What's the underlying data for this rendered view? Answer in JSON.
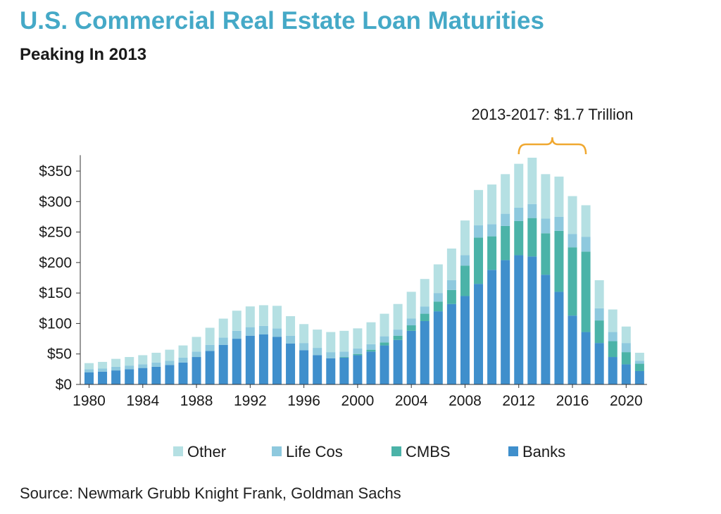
{
  "header": {
    "title": "U.S. Commercial Real Estate Loan Maturities",
    "subtitle": "Peaking In 2013"
  },
  "footer": {
    "source": "Source: Newmark Grubb Knight Frank, Goldman Sachs"
  },
  "chart_data": {
    "type": "bar",
    "stacked": true,
    "years": [
      1980,
      1981,
      1982,
      1983,
      1984,
      1985,
      1986,
      1987,
      1988,
      1989,
      1990,
      1991,
      1992,
      1993,
      1994,
      1995,
      1996,
      1997,
      1998,
      1999,
      2000,
      2001,
      2002,
      2003,
      2004,
      2005,
      2006,
      2007,
      2008,
      2009,
      2010,
      2011,
      2012,
      2013,
      2014,
      2015,
      2016,
      2017,
      2018,
      2019,
      2020,
      2021
    ],
    "x_tick_labels": [
      "1980",
      "1984",
      "1988",
      "1992",
      "1996",
      "2000",
      "2004",
      "2008",
      "2012",
      "2016",
      "2020"
    ],
    "y_tick_labels": [
      "$0",
      "$50",
      "$100",
      "$150",
      "$200",
      "$250",
      "$300",
      "$350"
    ],
    "y_ticks": [
      0,
      50,
      100,
      150,
      200,
      250,
      300,
      350
    ],
    "ylim": [
      0,
      380
    ],
    "legend_position": "bottom",
    "series": [
      {
        "name": "Banks",
        "color": "#3f8fcc",
        "values": [
          20,
          21,
          23,
          25,
          27,
          29,
          32,
          36,
          45,
          55,
          65,
          75,
          80,
          82,
          78,
          67,
          56,
          48,
          43,
          44,
          48,
          54,
          64,
          73,
          88,
          104,
          120,
          132,
          145,
          165,
          188,
          204,
          212,
          210,
          180,
          152,
          113,
          86,
          68,
          45,
          33,
          22
        ]
      },
      {
        "name": "CMBS",
        "color": "#4bb3a8",
        "values": [
          0,
          0,
          0,
          0,
          0,
          0,
          0,
          0,
          0,
          0,
          0,
          0,
          0,
          0,
          0,
          0,
          0,
          0,
          0,
          1,
          2,
          3,
          5,
          7,
          9,
          12,
          16,
          23,
          50,
          76,
          55,
          56,
          56,
          63,
          68,
          100,
          112,
          132,
          37,
          26,
          20,
          12
        ]
      },
      {
        "name": "Life Cos",
        "color": "#8ec9de",
        "values": [
          5,
          5,
          6,
          6,
          6,
          7,
          7,
          8,
          9,
          10,
          12,
          13,
          14,
          14,
          14,
          13,
          12,
          12,
          10,
          9,
          9,
          9,
          10,
          10,
          11,
          12,
          14,
          16,
          17,
          20,
          20,
          20,
          22,
          23,
          24,
          23,
          22,
          24,
          20,
          15,
          15,
          5
        ]
      },
      {
        "name": "Other",
        "color": "#b5e0e3",
        "values": [
          10,
          11,
          13,
          14,
          15,
          16,
          18,
          20,
          24,
          28,
          31,
          33,
          34,
          34,
          37,
          32,
          31,
          30,
          33,
          34,
          33,
          36,
          37,
          42,
          44,
          45,
          47,
          52,
          57,
          58,
          65,
          65,
          72,
          76,
          73,
          66,
          62,
          52,
          46,
          37,
          27,
          13
        ]
      }
    ],
    "legend_order": [
      "Other",
      "Life Cos",
      "CMBS",
      "Banks"
    ],
    "annotation": {
      "text": "2013-2017: $1.7 Trillion",
      "from_year": 2012,
      "to_year": 2017,
      "color": "#f0a830"
    }
  }
}
